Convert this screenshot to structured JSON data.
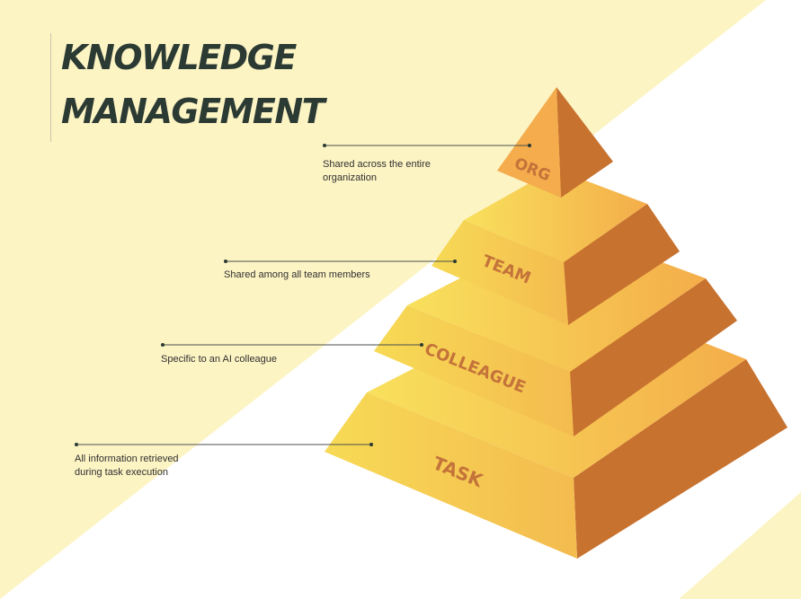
{
  "title": {
    "line1": "KNOWLEDGE",
    "line2": "MANAGEMENT"
  },
  "levels": [
    {
      "label": "ORG",
      "description": [
        "Shared across the entire",
        "organization"
      ]
    },
    {
      "label": "TEAM",
      "description": [
        "Shared among all team members"
      ]
    },
    {
      "label": "COLLEAGUE",
      "description": [
        "Specific to an AI colleague"
      ]
    },
    {
      "label": "TASK",
      "description": [
        "All information retrieved",
        "during task execution"
      ]
    }
  ],
  "colors": {
    "background_band": "#fdf4c4",
    "front_face_light": "#f7dd56",
    "front_face_dark": "#f4b04c",
    "side_face": "#c7722f",
    "label_text": "#c4733a",
    "title_text": "#2b3a33"
  }
}
